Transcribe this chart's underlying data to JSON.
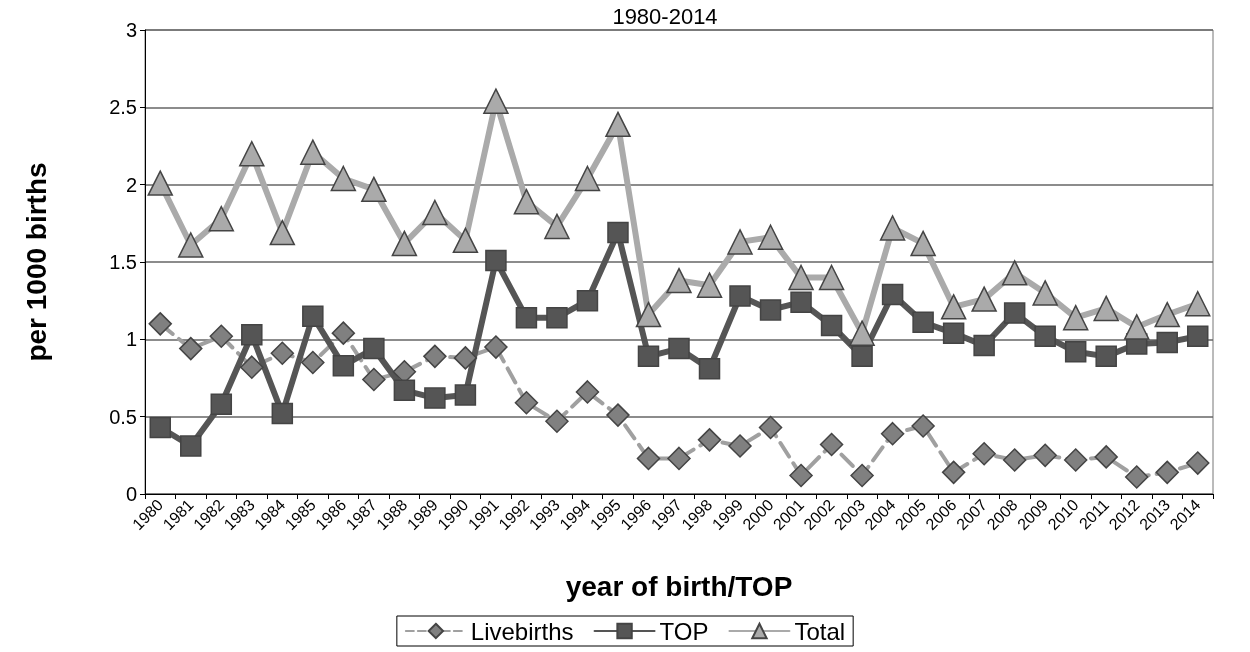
{
  "chart_data": {
    "type": "line",
    "title": "1980-2014",
    "xlabel": "year of birth/TOP",
    "ylabel": "per 1000 births",
    "categories": [
      "1980",
      "1981",
      "1982",
      "1983",
      "1984",
      "1985",
      "1986",
      "1987",
      "1988",
      "1989",
      "1990",
      "1991",
      "1992",
      "1993",
      "1994",
      "1995",
      "1996",
      "1997",
      "1998",
      "1999",
      "2000",
      "2001",
      "2002",
      "2003",
      "2004",
      "2005",
      "2006",
      "2007",
      "2008",
      "2009",
      "2010",
      "2011",
      "2012",
      "2013",
      "2014"
    ],
    "series": [
      {
        "name": "Livebirths",
        "color": "#808080",
        "marker": "diamond",
        "line_style": "dashed",
        "values": [
          1.1,
          0.94,
          1.02,
          0.82,
          0.91,
          0.85,
          1.04,
          0.74,
          0.79,
          0.89,
          0.88,
          0.95,
          0.59,
          0.47,
          0.66,
          0.51,
          0.23,
          0.23,
          0.35,
          0.31,
          0.43,
          0.12,
          0.32,
          0.12,
          0.39,
          0.44,
          0.14,
          0.26,
          0.22,
          0.25,
          0.22,
          0.24,
          0.11,
          0.14,
          0.2
        ]
      },
      {
        "name": "TOP",
        "color": "#555555",
        "marker": "square",
        "line_style": "solid",
        "values": [
          0.43,
          0.31,
          0.58,
          1.03,
          0.52,
          1.15,
          0.83,
          0.94,
          0.67,
          0.62,
          0.64,
          1.51,
          1.14,
          1.14,
          1.25,
          1.69,
          0.89,
          0.94,
          0.81,
          1.28,
          1.19,
          1.24,
          1.09,
          0.89,
          1.29,
          1.11,
          1.04,
          0.96,
          1.17,
          1.02,
          0.92,
          0.89,
          0.97,
          0.98,
          1.02
        ]
      },
      {
        "name": "Total",
        "color": "#aaaaaa",
        "marker": "triangle",
        "line_style": "solid",
        "values": [
          2.01,
          1.61,
          1.78,
          2.2,
          1.69,
          2.21,
          2.04,
          1.97,
          1.62,
          1.82,
          1.64,
          2.54,
          1.89,
          1.73,
          2.04,
          2.39,
          1.16,
          1.38,
          1.35,
          1.63,
          1.66,
          1.4,
          1.4,
          1.04,
          1.72,
          1.62,
          1.21,
          1.26,
          1.43,
          1.3,
          1.14,
          1.2,
          1.08,
          1.16,
          1.23
        ]
      }
    ],
    "ylim": [
      0,
      3
    ],
    "yticks": [
      0,
      0.5,
      1,
      1.5,
      2,
      2.5,
      3
    ],
    "grid": "y",
    "legend": "bottom"
  }
}
